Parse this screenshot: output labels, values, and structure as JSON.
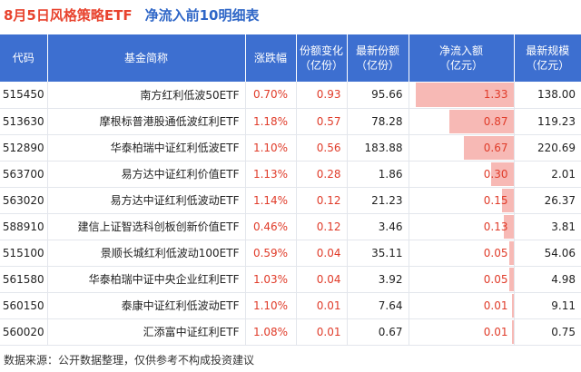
{
  "header": {
    "title_left": "8月5日风格策略ETF",
    "title_right": "净流入前10明细表"
  },
  "columns": [
    {
      "label": "代码"
    },
    {
      "label": "基金简称"
    },
    {
      "label": "涨跌幅"
    },
    {
      "label": "份额变化\n（亿份）"
    },
    {
      "label": "最新份额\n（亿份）"
    },
    {
      "label": "净流入额\n（亿元）"
    },
    {
      "label": "最新规模\n（亿元）"
    }
  ],
  "rows": [
    {
      "code": "515450",
      "name": "南方红利低波50ETF",
      "pct": "0.70%",
      "chg": "0.93",
      "latest": "95.66",
      "inflow": "1.33",
      "inflow_value": 1.33,
      "scale": "138.00"
    },
    {
      "code": "513630",
      "name": "摩根标普港股通低波红利ETF",
      "pct": "1.18%",
      "chg": "0.57",
      "latest": "78.28",
      "inflow": "0.87",
      "inflow_value": 0.87,
      "scale": "119.23"
    },
    {
      "code": "512890",
      "name": "华泰柏瑞中证红利低波ETF",
      "pct": "1.10%",
      "chg": "0.56",
      "latest": "183.88",
      "inflow": "0.67",
      "inflow_value": 0.67,
      "scale": "220.69"
    },
    {
      "code": "563700",
      "name": "易方达中证红利价值ETF",
      "pct": "1.13%",
      "chg": "0.28",
      "latest": "1.86",
      "inflow": "0.30",
      "inflow_value": 0.3,
      "scale": "2.01"
    },
    {
      "code": "563020",
      "name": "易方达中证红利低波动ETF",
      "pct": "1.14%",
      "chg": "0.12",
      "latest": "21.23",
      "inflow": "0.15",
      "inflow_value": 0.15,
      "scale": "26.37"
    },
    {
      "code": "588910",
      "name": "建信上证智选科创板创新价值ETF",
      "pct": "0.46%",
      "chg": "0.12",
      "latest": "3.46",
      "inflow": "0.13",
      "inflow_value": 0.13,
      "scale": "3.81"
    },
    {
      "code": "515100",
      "name": "景顺长城红利低波动100ETF",
      "pct": "0.59%",
      "chg": "0.04",
      "latest": "35.11",
      "inflow": "0.05",
      "inflow_value": 0.05,
      "scale": "54.06"
    },
    {
      "code": "561580",
      "name": "华泰柏瑞中证中央企业红利ETF",
      "pct": "1.03%",
      "chg": "0.04",
      "latest": "3.92",
      "inflow": "0.05",
      "inflow_value": 0.05,
      "scale": "4.98"
    },
    {
      "code": "560150",
      "name": "泰康中证红利低波动ETF",
      "pct": "1.10%",
      "chg": "0.01",
      "latest": "7.64",
      "inflow": "0.01",
      "inflow_value": 0.01,
      "scale": "9.11"
    },
    {
      "code": "560020",
      "name": "汇添富中证红利ETF",
      "pct": "1.08%",
      "chg": "0.01",
      "latest": "0.67",
      "inflow": "0.01",
      "inflow_value": 0.01,
      "scale": "0.75"
    }
  ],
  "footer": {
    "source": "数据来源：公开数据整理，仅供参考不构成投资建议"
  },
  "colors": {
    "header_bg": "#3d6fd0",
    "title_red": "#e8432e",
    "title_blue": "#2e66c7",
    "bar_fill": "#f7b9b5",
    "positive_text": "#e03c2a"
  }
}
